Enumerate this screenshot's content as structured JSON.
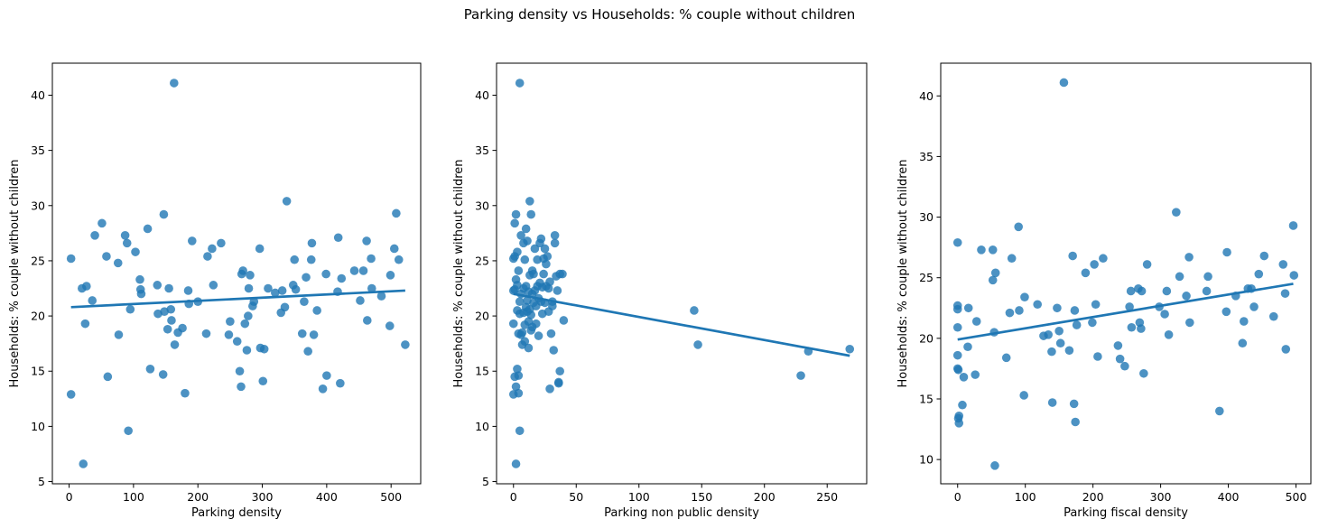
{
  "figure": {
    "title": "Parking density vs Households: % couple without children"
  },
  "chart_data": [
    {
      "type": "scatter",
      "xlabel": "Parking density",
      "ylabel": "Households: % couple without children",
      "xlim": [
        -26,
        546
      ],
      "ylim": [
        4.8,
        42.9
      ],
      "xticks": [
        0,
        100,
        200,
        300,
        400,
        500
      ],
      "yticks": [
        5,
        10,
        15,
        20,
        25,
        30,
        35,
        40
      ],
      "regression": {
        "x": [
          3,
          522
        ],
        "y": [
          20.8,
          22.3
        ]
      },
      "points": [
        [
          3,
          25.2
        ],
        [
          3,
          12.9
        ],
        [
          20,
          22.5
        ],
        [
          22,
          6.6
        ],
        [
          25,
          19.3
        ],
        [
          27,
          22.7
        ],
        [
          36,
          21.4
        ],
        [
          40,
          27.3
        ],
        [
          51,
          28.4
        ],
        [
          58,
          25.4
        ],
        [
          60,
          14.5
        ],
        [
          76,
          24.8
        ],
        [
          77,
          18.3
        ],
        [
          87,
          27.3
        ],
        [
          90,
          26.6
        ],
        [
          92,
          9.6
        ],
        [
          95,
          20.6
        ],
        [
          103,
          25.8
        ],
        [
          110,
          23.3
        ],
        [
          111,
          22.4
        ],
        [
          112,
          22.0
        ],
        [
          122,
          27.9
        ],
        [
          126,
          15.2
        ],
        [
          137,
          22.8
        ],
        [
          138,
          20.2
        ],
        [
          146,
          14.7
        ],
        [
          147,
          29.2
        ],
        [
          148,
          20.4
        ],
        [
          153,
          18.8
        ],
        [
          155,
          22.5
        ],
        [
          158,
          20.6
        ],
        [
          159,
          19.6
        ],
        [
          163,
          41.1
        ],
        [
          164,
          17.4
        ],
        [
          169,
          18.5
        ],
        [
          176,
          18.9
        ],
        [
          180,
          13.0
        ],
        [
          185,
          22.3
        ],
        [
          186,
          21.1
        ],
        [
          191,
          26.8
        ],
        [
          200,
          21.3
        ],
        [
          213,
          18.4
        ],
        [
          215,
          25.4
        ],
        [
          222,
          26.1
        ],
        [
          224,
          22.8
        ],
        [
          236,
          26.6
        ],
        [
          248,
          18.3
        ],
        [
          250,
          19.5
        ],
        [
          261,
          17.7
        ],
        [
          265,
          15.0
        ],
        [
          267,
          13.6
        ],
        [
          268,
          23.8
        ],
        [
          270,
          24.1
        ],
        [
          273,
          19.3
        ],
        [
          276,
          16.9
        ],
        [
          278,
          20.0
        ],
        [
          279,
          22.5
        ],
        [
          281,
          23.7
        ],
        [
          285,
          20.9
        ],
        [
          287,
          21.3
        ],
        [
          296,
          26.1
        ],
        [
          297,
          17.1
        ],
        [
          301,
          14.1
        ],
        [
          303,
          17.0
        ],
        [
          309,
          22.5
        ],
        [
          320,
          22.1
        ],
        [
          329,
          20.3
        ],
        [
          331,
          22.3
        ],
        [
          335,
          20.8
        ],
        [
          338,
          30.4
        ],
        [
          348,
          22.8
        ],
        [
          350,
          25.1
        ],
        [
          352,
          22.4
        ],
        [
          362,
          18.4
        ],
        [
          365,
          21.3
        ],
        [
          368,
          23.5
        ],
        [
          371,
          16.8
        ],
        [
          376,
          25.1
        ],
        [
          377,
          26.6
        ],
        [
          380,
          18.3
        ],
        [
          385,
          20.5
        ],
        [
          394,
          13.4
        ],
        [
          399,
          23.8
        ],
        [
          400,
          14.6
        ],
        [
          417,
          22.2
        ],
        [
          418,
          27.1
        ],
        [
          421,
          13.9
        ],
        [
          423,
          23.4
        ],
        [
          443,
          24.1
        ],
        [
          452,
          21.4
        ],
        [
          457,
          24.1
        ],
        [
          462,
          26.8
        ],
        [
          463,
          19.6
        ],
        [
          469,
          25.2
        ],
        [
          470,
          22.5
        ],
        [
          485,
          21.8
        ],
        [
          498,
          19.1
        ],
        [
          499,
          23.7
        ],
        [
          505,
          26.1
        ],
        [
          508,
          29.3
        ],
        [
          512,
          25.1
        ],
        [
          522,
          17.4
        ]
      ]
    },
    {
      "type": "scatter",
      "xlabel": "Parking non public density",
      "ylabel": "Households: % couple without children",
      "xlim": [
        -13.5,
        281.5
      ],
      "ylim": [
        4.8,
        42.9
      ],
      "xticks": [
        0,
        50,
        100,
        150,
        200,
        250
      ],
      "yticks": [
        5,
        10,
        15,
        20,
        25,
        30,
        35,
        40
      ],
      "regression": {
        "x": [
          0,
          268
        ],
        "y": [
          22.0,
          16.4
        ]
      },
      "points": [
        [
          0,
          25.2
        ],
        [
          0,
          12.9
        ],
        [
          0,
          22.3
        ],
        [
          0,
          19.3
        ],
        [
          1,
          28.4
        ],
        [
          1,
          14.5
        ],
        [
          1,
          25.4
        ],
        [
          1,
          22.4
        ],
        [
          2,
          6.6
        ],
        [
          2,
          13.6
        ],
        [
          2,
          29.2
        ],
        [
          2,
          23.3
        ],
        [
          3,
          15.2
        ],
        [
          3,
          20.5
        ],
        [
          3,
          22.8
        ],
        [
          3,
          25.8
        ],
        [
          4,
          14.6
        ],
        [
          4,
          13.0
        ],
        [
          4,
          18.4
        ],
        [
          4,
          24.1
        ],
        [
          5,
          41.1
        ],
        [
          5,
          9.6
        ],
        [
          5,
          21.3
        ],
        [
          5,
          20.2
        ],
        [
          6,
          18.3
        ],
        [
          6,
          22.0
        ],
        [
          6,
          27.3
        ],
        [
          7,
          18.5
        ],
        [
          7,
          17.4
        ],
        [
          8,
          26.6
        ],
        [
          8,
          22.5
        ],
        [
          8,
          20.3
        ],
        [
          9,
          25.1
        ],
        [
          9,
          19.2
        ],
        [
          9,
          17.7
        ],
        [
          10,
          27.9
        ],
        [
          10,
          22.7
        ],
        [
          10,
          20.8
        ],
        [
          11,
          20.4
        ],
        [
          11,
          26.8
        ],
        [
          11,
          21.4
        ],
        [
          12,
          19.5
        ],
        [
          12,
          22.2
        ],
        [
          12,
          17.1
        ],
        [
          13,
          30.4
        ],
        [
          13,
          23.7
        ],
        [
          13,
          20.6
        ],
        [
          14,
          20.1
        ],
        [
          14,
          18.7
        ],
        [
          14,
          29.2
        ],
        [
          15,
          24.1
        ],
        [
          15,
          22.0
        ],
        [
          15,
          19.0
        ],
        [
          16,
          23.8
        ],
        [
          16,
          21.2
        ],
        [
          17,
          26.1
        ],
        [
          17,
          22.3
        ],
        [
          18,
          20.9
        ],
        [
          18,
          19.3
        ],
        [
          19,
          25.1
        ],
        [
          19,
          22.7
        ],
        [
          20,
          21.6
        ],
        [
          20,
          18.2
        ],
        [
          21,
          26.6
        ],
        [
          21,
          23.0
        ],
        [
          22,
          27.0
        ],
        [
          22,
          21.3
        ],
        [
          23,
          22.6
        ],
        [
          23,
          20.2
        ],
        [
          24,
          25.2
        ],
        [
          24,
          23.8
        ],
        [
          25,
          26.1
        ],
        [
          25,
          21.2
        ],
        [
          26,
          24.7
        ],
        [
          26,
          22.7
        ],
        [
          27,
          25.4
        ],
        [
          28,
          22.5
        ],
        [
          28,
          20.4
        ],
        [
          29,
          13.4
        ],
        [
          29,
          23.1
        ],
        [
          30,
          18.4
        ],
        [
          31,
          21.3
        ],
        [
          31,
          20.9
        ],
        [
          32,
          16.9
        ],
        [
          33,
          27.3
        ],
        [
          33,
          26.6
        ],
        [
          34,
          23.6
        ],
        [
          35,
          22.3
        ],
        [
          36,
          14.0
        ],
        [
          36,
          13.9
        ],
        [
          37,
          15.0
        ],
        [
          37,
          23.8
        ],
        [
          39,
          23.8
        ],
        [
          40,
          19.6
        ],
        [
          144,
          20.5
        ],
        [
          147,
          17.4
        ],
        [
          229,
          14.6
        ],
        [
          235,
          16.8
        ],
        [
          268,
          17.0
        ]
      ]
    },
    {
      "type": "scatter",
      "xlabel": "Parking fiscal density",
      "ylabel": "Households: % couple without children",
      "xlim": [
        -25,
        522
      ],
      "ylim": [
        8.0,
        42.7
      ],
      "xticks": [
        0,
        100,
        200,
        300,
        400,
        500
      ],
      "yticks": [
        10,
        15,
        20,
        25,
        30,
        35,
        40
      ],
      "regression": {
        "x": [
          0,
          496
        ],
        "y": [
          19.9,
          24.5
        ]
      },
      "points": [
        [
          0,
          27.9
        ],
        [
          0,
          22.7
        ],
        [
          0,
          22.4
        ],
        [
          0,
          20.9
        ],
        [
          0,
          18.6
        ],
        [
          0,
          17.5
        ],
        [
          1,
          17.4
        ],
        [
          1,
          13.4
        ],
        [
          2,
          13.6
        ],
        [
          2,
          13.0
        ],
        [
          7,
          14.5
        ],
        [
          9,
          16.8
        ],
        [
          15,
          19.3
        ],
        [
          16,
          22.5
        ],
        [
          26,
          17.0
        ],
        [
          28,
          21.4
        ],
        [
          35,
          27.3
        ],
        [
          52,
          27.3
        ],
        [
          52,
          24.8
        ],
        [
          54,
          20.5
        ],
        [
          55,
          9.5
        ],
        [
          56,
          25.4
        ],
        [
          72,
          18.4
        ],
        [
          77,
          22.1
        ],
        [
          80,
          26.6
        ],
        [
          90,
          29.2
        ],
        [
          91,
          22.3
        ],
        [
          98,
          15.3
        ],
        [
          99,
          23.4
        ],
        [
          118,
          22.8
        ],
        [
          127,
          20.2
        ],
        [
          134,
          20.3
        ],
        [
          139,
          18.9
        ],
        [
          140,
          14.7
        ],
        [
          147,
          22.5
        ],
        [
          150,
          20.6
        ],
        [
          152,
          19.6
        ],
        [
          157,
          41.1
        ],
        [
          165,
          19.0
        ],
        [
          170,
          26.8
        ],
        [
          172,
          14.6
        ],
        [
          173,
          22.3
        ],
        [
          174,
          13.1
        ],
        [
          176,
          21.1
        ],
        [
          189,
          25.4
        ],
        [
          199,
          21.3
        ],
        [
          202,
          26.1
        ],
        [
          204,
          22.8
        ],
        [
          207,
          18.5
        ],
        [
          215,
          26.6
        ],
        [
          237,
          19.4
        ],
        [
          240,
          18.3
        ],
        [
          247,
          17.7
        ],
        [
          254,
          22.6
        ],
        [
          256,
          23.9
        ],
        [
          257,
          20.9
        ],
        [
          267,
          24.1
        ],
        [
          269,
          21.3
        ],
        [
          271,
          20.8
        ],
        [
          272,
          23.9
        ],
        [
          275,
          17.1
        ],
        [
          280,
          26.1
        ],
        [
          298,
          22.6
        ],
        [
          306,
          22.0
        ],
        [
          309,
          23.9
        ],
        [
          312,
          20.3
        ],
        [
          323,
          30.4
        ],
        [
          328,
          25.1
        ],
        [
          338,
          23.5
        ],
        [
          342,
          26.7
        ],
        [
          343,
          21.3
        ],
        [
          368,
          23.9
        ],
        [
          370,
          25.1
        ],
        [
          387,
          14.0
        ],
        [
          397,
          22.2
        ],
        [
          398,
          27.1
        ],
        [
          411,
          23.5
        ],
        [
          421,
          19.6
        ],
        [
          423,
          21.4
        ],
        [
          429,
          24.1
        ],
        [
          434,
          24.1
        ],
        [
          438,
          22.6
        ],
        [
          445,
          25.3
        ],
        [
          453,
          26.8
        ],
        [
          467,
          21.8
        ],
        [
          481,
          26.1
        ],
        [
          484,
          23.7
        ],
        [
          485,
          19.1
        ],
        [
          496,
          29.3
        ],
        [
          497,
          25.2
        ]
      ]
    }
  ]
}
